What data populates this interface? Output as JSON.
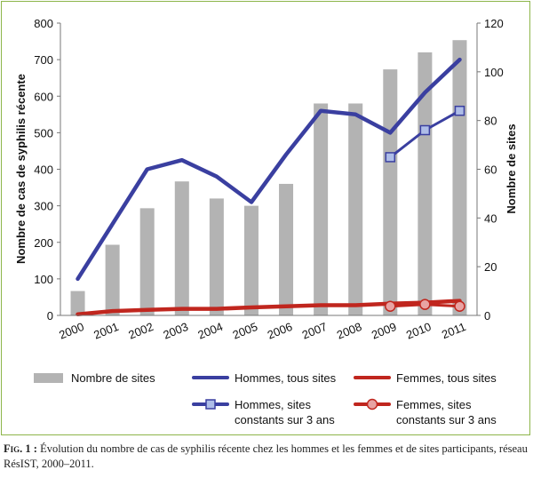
{
  "chart_data": {
    "type": "bar",
    "categories": [
      "2000",
      "2001",
      "2002",
      "2003",
      "2004",
      "2005",
      "2006",
      "2007",
      "2008",
      "2009",
      "2010",
      "2011"
    ],
    "ylabel": "Nombre de cas de syphilis récente",
    "ylabel_right": "Nombre de sites",
    "ylim": [
      0,
      800
    ],
    "ylim_right": [
      0,
      120
    ],
    "yticks": [
      "0",
      "100",
      "200",
      "300",
      "400",
      "500",
      "600",
      "700",
      "800"
    ],
    "yticks_right": [
      "0",
      "20",
      "40",
      "60",
      "80",
      "100",
      "120"
    ],
    "grid": false,
    "legend_position": "bottom",
    "bars": {
      "name": "Nombre de sites",
      "axis": "right",
      "color": "#b3b3b3",
      "values": [
        10,
        29,
        44,
        55,
        48,
        45,
        54,
        87,
        87,
        101,
        108,
        113
      ]
    },
    "series": [
      {
        "name": "Hommes, tous sites",
        "axis": "left",
        "color": "#3a3fa0",
        "marker": "none",
        "values": [
          100,
          250,
          400,
          425,
          380,
          310,
          440,
          560,
          550,
          500,
          610,
          700
        ]
      },
      {
        "name": "Hommes, sites constants sur 3 ans",
        "axis": "left",
        "color": "#3a3fa0",
        "marker": "square",
        "marker_fill": "#aebde8",
        "values": [
          null,
          null,
          null,
          null,
          null,
          null,
          null,
          null,
          null,
          433,
          507,
          560
        ]
      },
      {
        "name": "Femmes, tous sites",
        "axis": "left",
        "color": "#c0261e",
        "marker": "none",
        "values": [
          3,
          12,
          15,
          18,
          18,
          22,
          25,
          28,
          28,
          32,
          35,
          40
        ]
      },
      {
        "name": "Femmes, sites constants sur 3 ans",
        "axis": "left",
        "color": "#c0261e",
        "marker": "circle",
        "marker_fill": "#e8a3a3",
        "values": [
          null,
          null,
          null,
          null,
          null,
          null,
          null,
          null,
          null,
          25,
          30,
          25
        ]
      }
    ]
  },
  "caption": {
    "label": "Fig. 1 :",
    "text": " Évolution du nombre de cas de syphilis récente chez les hommes et les femmes et de sites participants, réseau RésIST, 2000–2011."
  }
}
